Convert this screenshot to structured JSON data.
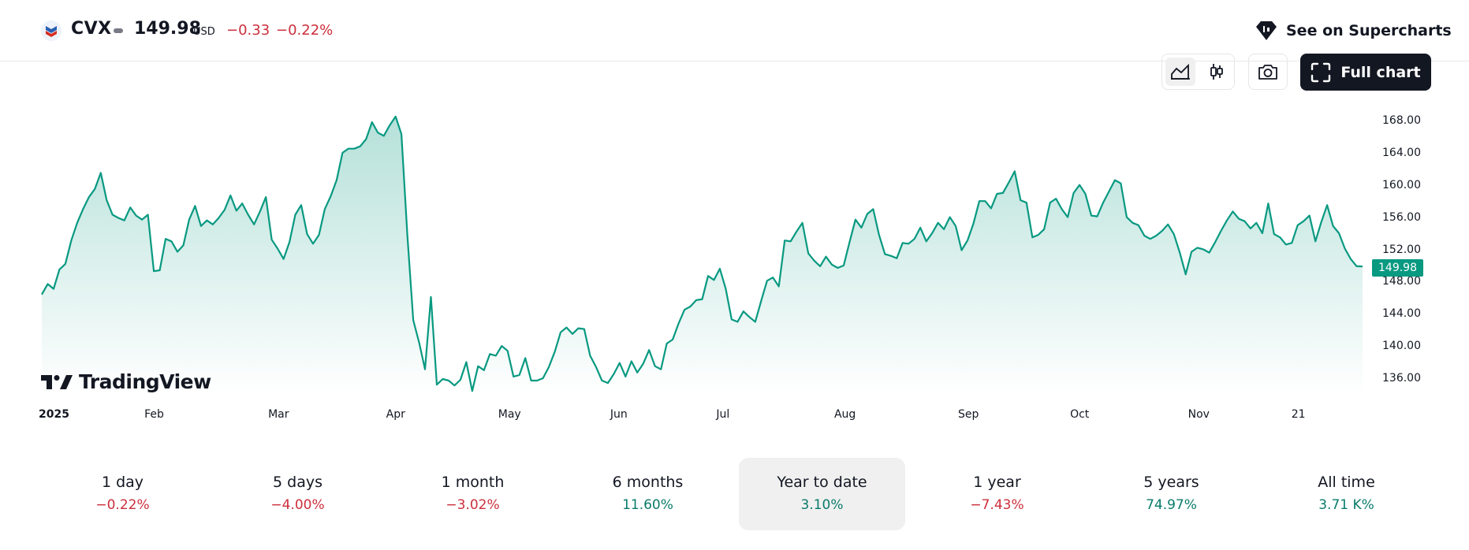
{
  "header": {
    "symbol": "CVX",
    "price": "149.98",
    "currency": "USD",
    "change": "−0.33",
    "change_percent": "−0.22%",
    "supercharts_label": "See on Supercharts",
    "brand_logo": "chevron-logo"
  },
  "toolbar": {
    "line_chart_icon": "area-chart-icon",
    "candles_icon": "candlestick-icon",
    "camera_icon": "camera-icon",
    "full_chart_label": "Full chart",
    "full_chart_icon": "fullscreen-icon"
  },
  "brand": {
    "name": "TradingView"
  },
  "last_price_badge": "149.98",
  "colors": {
    "line": "#089981",
    "negative": "#cc2f3c",
    "positive": "#0a7b6a",
    "fill_top": "#b8e3d8"
  },
  "chart_data": {
    "type": "area",
    "title": "CVX",
    "series": [
      {
        "name": "CVX",
        "values": [
          146.5,
          147.8,
          147.2,
          149.6,
          150.3,
          153.2,
          155.4,
          157.1,
          158.6,
          159.6,
          161.6,
          158.2,
          156.4,
          156.0,
          155.7,
          157.3,
          156.3,
          155.8,
          156.4,
          149.4,
          149.5,
          153.4,
          153.1,
          151.8,
          152.6,
          155.8,
          157.5,
          155.0,
          155.7,
          155.2,
          156.0,
          157.0,
          158.8,
          156.9,
          157.8,
          156.4,
          155.2,
          156.8,
          158.6,
          153.3,
          152.2,
          150.9,
          153.0,
          156.4,
          157.6,
          154.0,
          152.8,
          153.9,
          157.1,
          158.7,
          160.7,
          164.1,
          164.6,
          164.6,
          164.9,
          165.8,
          167.9,
          166.6,
          166.2,
          167.5,
          168.6,
          166.4,
          153.9,
          143.3,
          140.5,
          137.2,
          146.2,
          135.3,
          136.0,
          135.8,
          135.2,
          135.9,
          138.1,
          134.5,
          137.6,
          137.1,
          139.1,
          138.9,
          140.1,
          139.5,
          136.3,
          136.5,
          138.6,
          135.8,
          135.8,
          136.1,
          137.5,
          139.4,
          141.8,
          142.4,
          141.6,
          142.3,
          142.2,
          138.9,
          137.5,
          135.8,
          135.5,
          136.6,
          138.0,
          136.3,
          138.2,
          136.8,
          137.9,
          139.6,
          137.6,
          137.2,
          140.4,
          140.9,
          142.9,
          144.6,
          145.0,
          145.8,
          145.9,
          148.8,
          148.3,
          149.7,
          147.2,
          143.4,
          143.1,
          144.4,
          143.7,
          143.1,
          145.7,
          148.2,
          148.6,
          147.5,
          153.2,
          153.1,
          154.3,
          155.4,
          151.6,
          150.7,
          150.0,
          151.2,
          150.2,
          149.8,
          150.1,
          153.0,
          155.8,
          154.8,
          156.5,
          157.1,
          153.9,
          151.5,
          151.3,
          151.0,
          152.9,
          152.8,
          153.4,
          154.8,
          153.1,
          154.1,
          155.4,
          154.6,
          156.1,
          155.0,
          152.0,
          153.2,
          155.3,
          158.1,
          158.1,
          157.2,
          159.0,
          159.1,
          160.4,
          161.8,
          158.2,
          157.9,
          153.6,
          153.9,
          154.6,
          157.9,
          158.4,
          157.1,
          156.1,
          159.1,
          160.1,
          159.0,
          156.3,
          156.2,
          157.9,
          159.3,
          160.7,
          160.3,
          156.1,
          155.4,
          155.1,
          153.8,
          153.4,
          153.8,
          154.4,
          155.2,
          154.0,
          151.7,
          149.0,
          151.8,
          152.3,
          152.1,
          151.7,
          153.0,
          154.4,
          155.7,
          156.8,
          155.9,
          155.6,
          154.7,
          155.4,
          154.1,
          157.8,
          154.0,
          153.6,
          152.7,
          152.9,
          155.1,
          155.6,
          156.3,
          153.1,
          155.5,
          157.6,
          155.0,
          154.1,
          152.2,
          150.9,
          150.0,
          149.98
        ]
      }
    ],
    "x_tick_labels": [
      "2025",
      "Feb",
      "Mar",
      "Apr",
      "May",
      "Jun",
      "Jul",
      "Aug",
      "Sep",
      "Oct",
      "Nov",
      "21"
    ],
    "x_tick_index": [
      0,
      19,
      40,
      60,
      79,
      98,
      116,
      136,
      157,
      176,
      196,
      213
    ],
    "y_tick_labels": [
      "168.00",
      "164.00",
      "160.00",
      "156.00",
      "152.00",
      "148.00",
      "144.00",
      "140.00",
      "136.00"
    ],
    "ylim": [
      132,
      171
    ],
    "xlabel": "",
    "ylabel": ""
  },
  "periods": [
    {
      "label": "1 day",
      "value": "−0.22%",
      "trend": "neg",
      "selected": false
    },
    {
      "label": "5 days",
      "value": "−4.00%",
      "trend": "neg",
      "selected": false
    },
    {
      "label": "1 month",
      "value": "−3.02%",
      "trend": "neg",
      "selected": false
    },
    {
      "label": "6 months",
      "value": "11.60%",
      "trend": "pos",
      "selected": false
    },
    {
      "label": "Year to date",
      "value": "3.10%",
      "trend": "pos",
      "selected": true
    },
    {
      "label": "1 year",
      "value": "−7.43%",
      "trend": "neg",
      "selected": false
    },
    {
      "label": "5 years",
      "value": "74.97%",
      "trend": "pos",
      "selected": false
    },
    {
      "label": "All time",
      "value": "3.71 K%",
      "trend": "pos",
      "selected": false
    }
  ]
}
